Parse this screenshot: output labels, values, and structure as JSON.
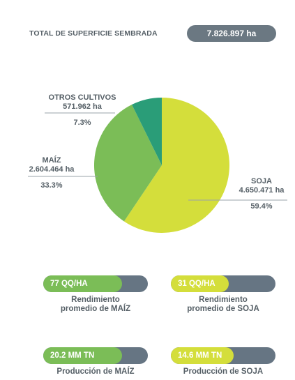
{
  "total": {
    "label": "TOTAL DE SUPERFICIE SEMBRADA",
    "value": "7.826.897 ha"
  },
  "chart_data": {
    "type": "pie",
    "slices": [
      {
        "name": "SOJA",
        "value": 4650471,
        "value_label": "4.650.471 ha",
        "percent": 59.4,
        "percent_label": "59.4%",
        "color": "#d4de3b"
      },
      {
        "name": "MAÍZ",
        "value": 2604464,
        "value_label": "2.604.464 ha",
        "percent": 33.3,
        "percent_label": "33.3%",
        "color": "#7bbd57"
      },
      {
        "name": "OTROS CULTIVOS",
        "value": 571962,
        "value_label": "571.962 ha",
        "percent": 7.3,
        "percent_label": "7.3%",
        "color": "#2a9d78"
      }
    ]
  },
  "stats": [
    {
      "label": "77 QQ/HA",
      "caption": "Rendimiento\npromedio de MAÍZ",
      "fill_fraction": 0.75,
      "color": "#7bbd57"
    },
    {
      "label": "31 QQ/HA",
      "caption": "Rendimiento\npromedio de SOJA",
      "fill_fraction": 0.55,
      "color": "#d4de3b"
    },
    {
      "label": "20.2 MM TN",
      "caption": "Producción de MAÍZ",
      "fill_fraction": 0.75,
      "color": "#7bbd57"
    },
    {
      "label": "14.6 MM TN",
      "caption": "Producción de SOJA",
      "fill_fraction": 0.6,
      "color": "#d4de3b"
    }
  ]
}
